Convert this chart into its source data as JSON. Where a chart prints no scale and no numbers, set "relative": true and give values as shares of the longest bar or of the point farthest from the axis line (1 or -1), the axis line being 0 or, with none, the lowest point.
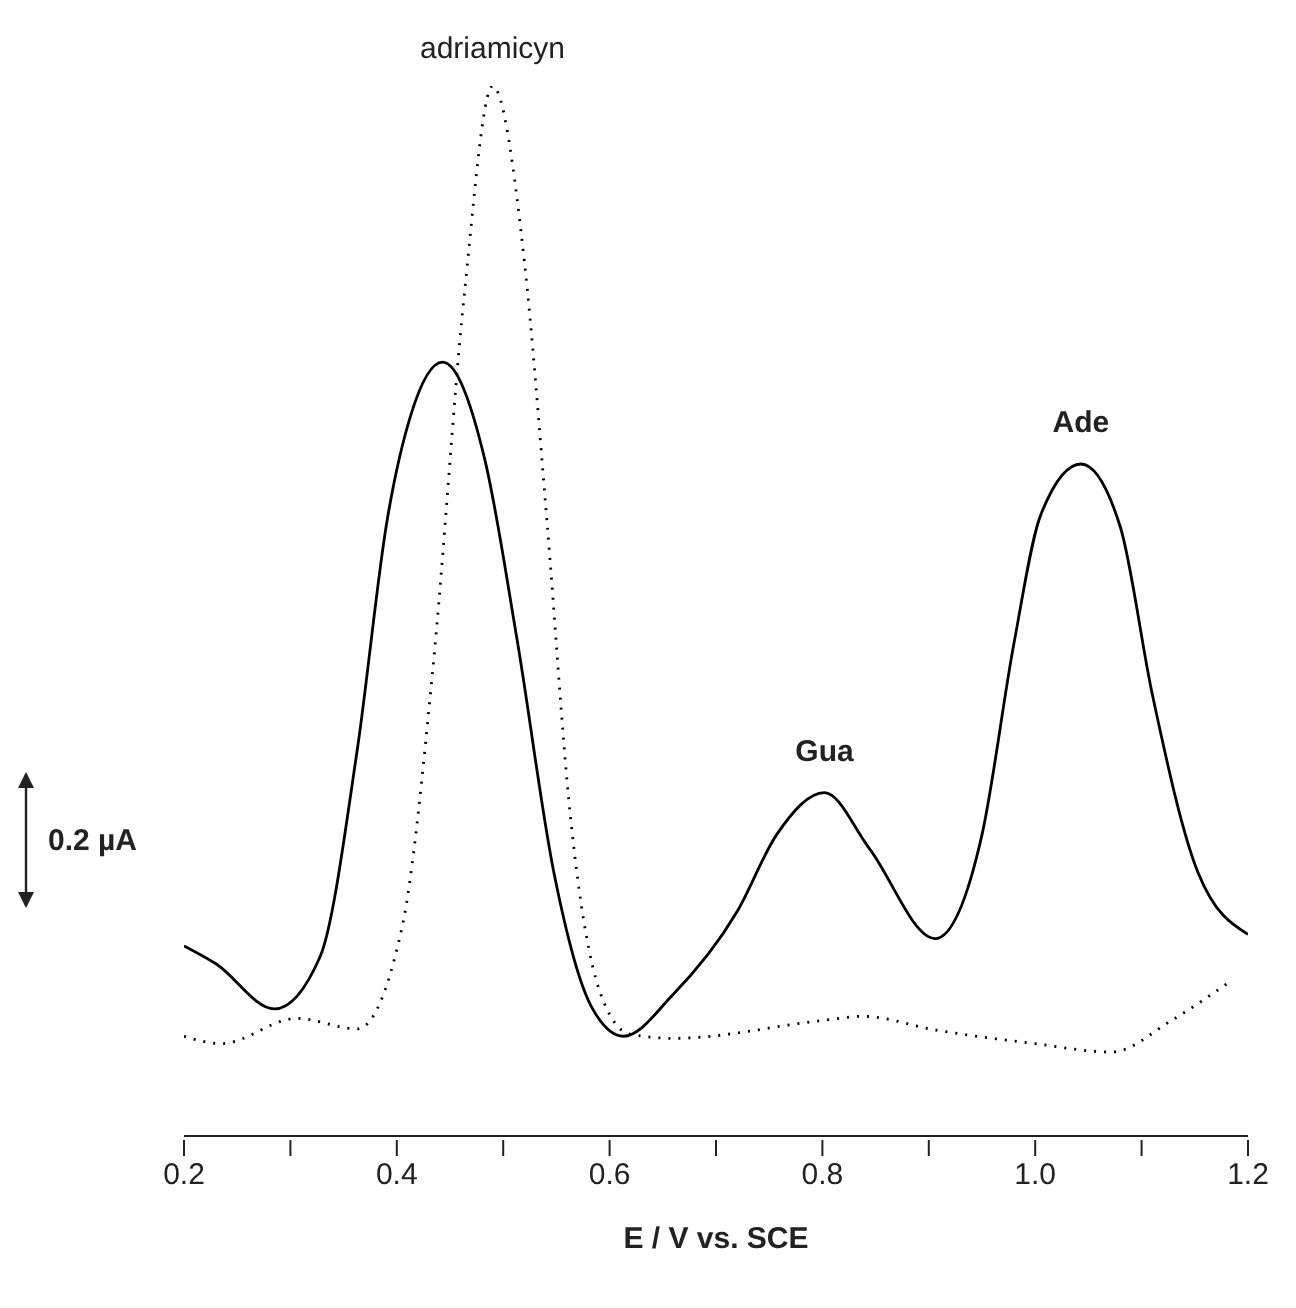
{
  "chart_data": {
    "type": "line",
    "relative": true,
    "xlabel": "E / V vs. SCE",
    "xlim": [
      0.2,
      1.2
    ],
    "xticks": [
      {
        "value": 0.2,
        "label": "0.2"
      },
      {
        "value": 0.3,
        "label": null
      },
      {
        "value": 0.4,
        "label": "0.4"
      },
      {
        "value": 0.5,
        "label": null
      },
      {
        "value": 0.6,
        "label": "0.6"
      },
      {
        "value": 0.7,
        "label": null
      },
      {
        "value": 0.8,
        "label": "0.8"
      },
      {
        "value": 0.9,
        "label": null
      },
      {
        "value": 1.0,
        "label": "1.0"
      },
      {
        "value": 1.1,
        "label": null
      },
      {
        "value": 1.2,
        "label": "1.2"
      }
    ],
    "marker": "none",
    "series": [
      {
        "color": "#000000",
        "line_style": "solid",
        "x": [
          0.2,
          0.23,
          0.285,
          0.328,
          0.363,
          0.391,
          0.413,
          0.443,
          0.483,
          0.513,
          0.548,
          0.583,
          0.613,
          0.659,
          0.72,
          0.757,
          0.802,
          0.844,
          0.906,
          0.95,
          0.98,
          1.005,
          1.043,
          1.08,
          1.11,
          1.153,
          1.2
        ],
        "values": [
          0.181,
          0.164,
          0.121,
          0.171,
          0.369,
          0.587,
          0.686,
          0.737,
          0.643,
          0.473,
          0.249,
          0.123,
          0.095,
          0.134,
          0.214,
          0.287,
          0.327,
          0.274,
          0.188,
          0.287,
          0.469,
          0.591,
          0.64,
          0.58,
          0.421,
          0.251,
          0.192
        ]
      },
      {
        "color": "#000000",
        "line_style": "dotted",
        "x": [
          0.2,
          0.235,
          0.306,
          0.363,
          0.405,
          0.434,
          0.463,
          0.49,
          0.52,
          0.541,
          0.563,
          0.591,
          0.619,
          0.66,
          0.8,
          0.838,
          0.906,
          0.999,
          1.072,
          1.128,
          1.183
        ],
        "values": [
          0.095,
          0.088,
          0.112,
          0.102,
          0.199,
          0.446,
          0.797,
          1.0,
          0.832,
          0.587,
          0.306,
          0.137,
          0.097,
          0.093,
          0.11,
          0.114,
          0.101,
          0.088,
          0.08,
          0.11,
          0.147
        ]
      }
    ],
    "annotations": [
      {
        "text": "adriamicyn",
        "x": 0.49,
        "y": 1.0
      },
      {
        "text": "Gua",
        "x": 0.802,
        "y": 0.327
      },
      {
        "text": "Ade",
        "x": 1.043,
        "y": 0.64
      },
      "0.2 µA"
    ]
  }
}
